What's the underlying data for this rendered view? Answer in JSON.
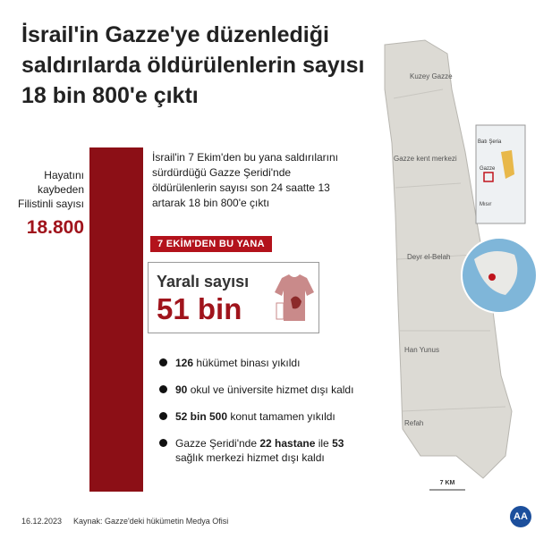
{
  "title_lines": [
    "İsrail'in Gazze'ye düzenlediği",
    "saldırılarda öldürülenlerin sayısı",
    "18 bin 800'e çıktı"
  ],
  "killed": {
    "label": "Hayatını kaybeden Filistinli sayısı",
    "value": "18.800"
  },
  "lead": "İsrail'in 7 Ekim'den bu yana saldırılarını sürdürdüğü Gazze Şeridi'nde öldürülenlerin sayısı son 24 saatte 13 artarak 18 bin 800'e çıktı",
  "badge": "7 EKİM'DEN  BU YANA",
  "injured": {
    "label": "Yaralı sayısı",
    "value": "51 bin"
  },
  "items": [
    [
      {
        "text": "126",
        "bold": true
      },
      {
        "text": " hükümet binası yıkıldı",
        "bold": false
      }
    ],
    [
      {
        "text": "90",
        "bold": true
      },
      {
        "text": " okul ve üniversite hizmet dışı kaldı",
        "bold": false
      }
    ],
    [
      {
        "text": "52 bin 500",
        "bold": true
      },
      {
        "text": " konut tamamen yıkıldı",
        "bold": false
      }
    ],
    [
      {
        "text": "Gazze Şeridi'nde ",
        "bold": false
      },
      {
        "text": "22 hastane",
        "bold": true
      },
      {
        "text": " ile ",
        "bold": false
      },
      {
        "text": "53",
        "bold": true
      },
      {
        "text": " sağlık merkezi hizmet dışı kaldı",
        "bold": false
      }
    ]
  ],
  "map": {
    "places": [
      "Kuzey Gazze",
      "Gazze kent merkezi",
      "Deyr el-Belah",
      "Han Yunus",
      "Refah"
    ],
    "inset": [
      "Batı Şeria",
      "Gazze",
      "Mısır"
    ],
    "scale": "7 KM"
  },
  "footer": {
    "date": "16.12.2023",
    "source": "Kaynak: Gazze'deki hükümetin Medya Ofisi",
    "logo": "AA"
  }
}
